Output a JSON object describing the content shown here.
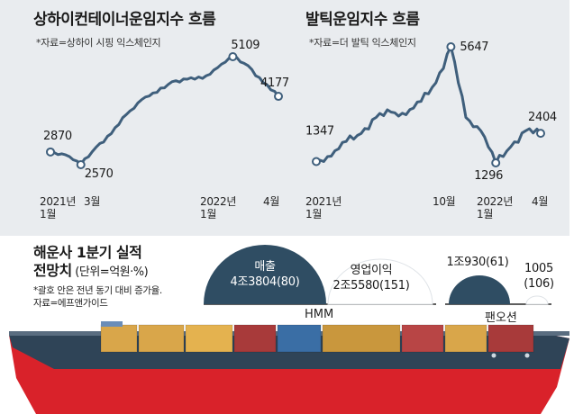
{
  "colors": {
    "panel": "#e9ecef",
    "line": "#3f5f7c",
    "dome": "#2f4d63",
    "dome_light": "#ffffff",
    "hull_top": "#2f4457",
    "hull_bottom": "#d9222a",
    "containers": [
      "#a83a3a",
      "#d9a64a",
      "#3a6ea5",
      "#e4b24f",
      "#b84545",
      "#c9973d"
    ]
  },
  "left_chart": {
    "title": "상하이컨테이너운임지수 흐름",
    "source": "*자료=상하이 시핑 익스체인지",
    "x_ticks": [
      {
        "line1": "2021년",
        "line2": "1월"
      },
      {
        "line1": "3월",
        "line2": ""
      },
      {
        "line1": "2022년",
        "line2": "1월"
      },
      {
        "line1": "4월",
        "line2": ""
      }
    ],
    "callouts": [
      "2870",
      "2570",
      "5109",
      "4177"
    ]
  },
  "right_chart": {
    "title": "발틱운임지수 흐름",
    "source": "*자료=더 발틱 익스체인지",
    "x_ticks": [
      {
        "line1": "2021년",
        "line2": "1월"
      },
      {
        "line1": "10월",
        "line2": ""
      },
      {
        "line1": "2022년",
        "line2": "1월"
      },
      {
        "line1": "4월",
        "line2": ""
      }
    ],
    "callouts": [
      "1347",
      "5647",
      "1296",
      "2404"
    ]
  },
  "chart_data": [
    {
      "type": "line",
      "title": "상하이컨테이너운임지수 흐름",
      "source": "*자료=상하이 시핑 익스체인지",
      "x": [
        "2021-01",
        "2021-02",
        "2021-03",
        "2021-04",
        "2021-05",
        "2021-06",
        "2021-07",
        "2021-08",
        "2021-09",
        "2021-10",
        "2021-11",
        "2021-12",
        "2022-01",
        "2022-02",
        "2022-03",
        "2022-04"
      ],
      "y": [
        2870,
        2800,
        2570,
        2980,
        3300,
        3750,
        4100,
        4270,
        4520,
        4580,
        4600,
        4850,
        5109,
        4900,
        4500,
        4177
      ],
      "labeled_points": [
        {
          "x": "2021-01",
          "y": 2870
        },
        {
          "x": "2021-03",
          "y": 2570
        },
        {
          "x": "2022-01",
          "y": 5109
        },
        {
          "x": "2022-04",
          "y": 4177
        }
      ],
      "x_tick_labels": [
        "2021년 1월",
        "3월",
        "2022년 1월",
        "4월"
      ]
    },
    {
      "type": "line",
      "title": "발틱운임지수 흐름",
      "source": "*자료=더 발틱 익스체인지",
      "x": [
        "2021-01",
        "2021-02",
        "2021-03",
        "2021-04",
        "2021-05",
        "2021-06",
        "2021-07",
        "2021-08",
        "2021-09",
        "2021-10",
        "2021-11",
        "2021-12",
        "2022-01",
        "2022-02",
        "2022-03",
        "2022-04"
      ],
      "y": [
        1347,
        1550,
        2100,
        2400,
        3000,
        3200,
        3100,
        3600,
        4300,
        5647,
        3000,
        2500,
        1296,
        1900,
        2500,
        2404
      ],
      "labeled_points": [
        {
          "x": "2021-01",
          "y": 1347
        },
        {
          "x": "2021-10",
          "y": 5647
        },
        {
          "x": "2022-01",
          "y": 1296
        },
        {
          "x": "2022-04",
          "y": 2404
        }
      ],
      "x_tick_labels": [
        "2021년 1월",
        "10월",
        "2022년 1월",
        "4월"
      ]
    },
    {
      "type": "bar",
      "title": "해운사 1분기 실적 전망치",
      "unit": "(단위=억원·%)",
      "categories": [
        "HMM",
        "팬오션"
      ],
      "series": [
        {
          "name": "매출",
          "values": [
            43804,
            10930
          ],
          "yoy_pct": [
            80,
            61
          ]
        },
        {
          "name": "영업이익",
          "values": [
            25580,
            1005
          ],
          "yoy_pct": [
            151,
            106
          ]
        }
      ]
    }
  ],
  "bottom": {
    "title_line1": "해운사 1분기 실적",
    "title_line2": "전망치",
    "unit": " (단위=억원·%)",
    "note_line1": "*괄호 안은 전년 동기 대비 증가율.",
    "note_line2": "자료=에프앤가이드",
    "hmm": {
      "name": "HMM",
      "sales_label": "매출",
      "sales_value": "4조3804(80)",
      "profit_label": "영업이익",
      "profit_value": "2조5580(151)"
    },
    "pan": {
      "name": "팬오션",
      "sales_value": "1조930(61)",
      "profit_value_line1": "1005",
      "profit_value_line2": "(106)"
    }
  }
}
